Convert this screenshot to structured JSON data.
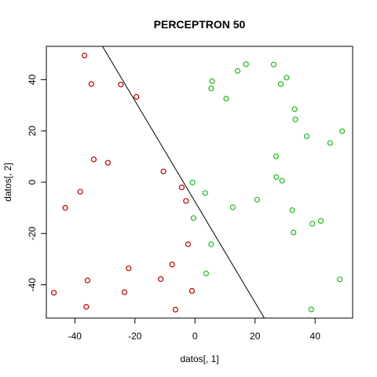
{
  "chart_data": {
    "type": "scatter",
    "title": "PERCEPTRON 50",
    "xlabel": "datos[, 1]",
    "ylabel": "datos[, 2]",
    "xlim": [
      -49.5,
      52.5
    ],
    "ylim": [
      -53,
      53
    ],
    "grid": false,
    "x_ticks": [
      "-40",
      "-20",
      "0",
      "20",
      "40"
    ],
    "y_ticks": [
      "-40",
      "-20",
      "0",
      "20",
      "40"
    ],
    "series": [
      {
        "color": "#b30000",
        "points": [
          [
            -36.8,
            49.4
          ],
          [
            -34.5,
            38.3
          ],
          [
            -24.7,
            38.1
          ],
          [
            -19.5,
            33.3
          ],
          [
            -33.7,
            8.9
          ],
          [
            -29.0,
            7.6
          ],
          [
            -10.5,
            4.2
          ],
          [
            -38.2,
            -3.7
          ],
          [
            -43.2,
            -10.0
          ],
          [
            -4.4,
            -2.0
          ],
          [
            -3.0,
            -7.3
          ],
          [
            -2.3,
            -24.2
          ],
          [
            -7.6,
            -32.1
          ],
          [
            -22.1,
            -33.6
          ],
          [
            -11.4,
            -37.8
          ],
          [
            -35.8,
            -38.3
          ],
          [
            -47.0,
            -43.1
          ],
          [
            -23.5,
            -42.9
          ],
          [
            -1.0,
            -42.4
          ],
          [
            -36.2,
            -48.6
          ],
          [
            -6.5,
            -49.7
          ]
        ]
      },
      {
        "color": "#1fb81f",
        "points": [
          [
            26.2,
            45.9
          ],
          [
            17.0,
            46.0
          ],
          [
            14.2,
            43.4
          ],
          [
            30.5,
            40.8
          ],
          [
            5.7,
            39.4
          ],
          [
            28.6,
            38.3
          ],
          [
            5.4,
            36.6
          ],
          [
            10.4,
            32.6
          ],
          [
            33.2,
            28.5
          ],
          [
            33.4,
            24.5
          ],
          [
            49.0,
            19.9
          ],
          [
            37.2,
            17.9
          ],
          [
            45.0,
            15.3
          ],
          [
            27.0,
            10.1
          ],
          [
            -0.8,
            -0.1
          ],
          [
            27.1,
            2.0
          ],
          [
            29.0,
            0.6
          ],
          [
            3.4,
            -4.2
          ],
          [
            20.7,
            -6.8
          ],
          [
            12.6,
            -9.8
          ],
          [
            32.4,
            -10.9
          ],
          [
            -0.5,
            -14.0
          ],
          [
            41.9,
            -15.1
          ],
          [
            39.1,
            -16.2
          ],
          [
            32.8,
            -19.6
          ],
          [
            5.4,
            -24.2
          ],
          [
            3.7,
            -35.6
          ],
          [
            48.2,
            -37.9
          ],
          [
            38.7,
            -49.6
          ]
        ]
      }
    ],
    "line": {
      "color": "#000000",
      "points": [
        [
          -30.8,
          53.0
        ],
        [
          23.1,
          -53.0
        ]
      ]
    }
  }
}
